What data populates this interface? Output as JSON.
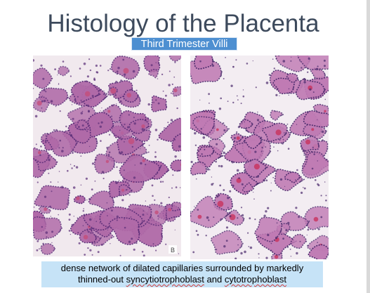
{
  "slide": {
    "title": "Histology of the Placenta",
    "subtitle": "Third Trimester Villi",
    "images": [
      {
        "name": "left-micrograph",
        "scale_mark": "B",
        "colors": {
          "background": "#f1e9ee",
          "tissue": "#b06aa8",
          "nuclei": "#5a2d78",
          "blood": "#c44d7a"
        }
      },
      {
        "name": "right-micrograph",
        "colors": {
          "background": "#f3edf2",
          "tissue": "#c07bb4",
          "nuclei": "#4a2a6c",
          "blood": "#c8325c"
        }
      }
    ],
    "caption": {
      "line1": "dense network of dilated capillaries surrounded by markedly",
      "line2_pre": "thinned-out ",
      "line2_word1": "syncytiotrophoblast",
      "line2_mid": " and ",
      "line2_word2": "cytotrophoblast"
    }
  }
}
